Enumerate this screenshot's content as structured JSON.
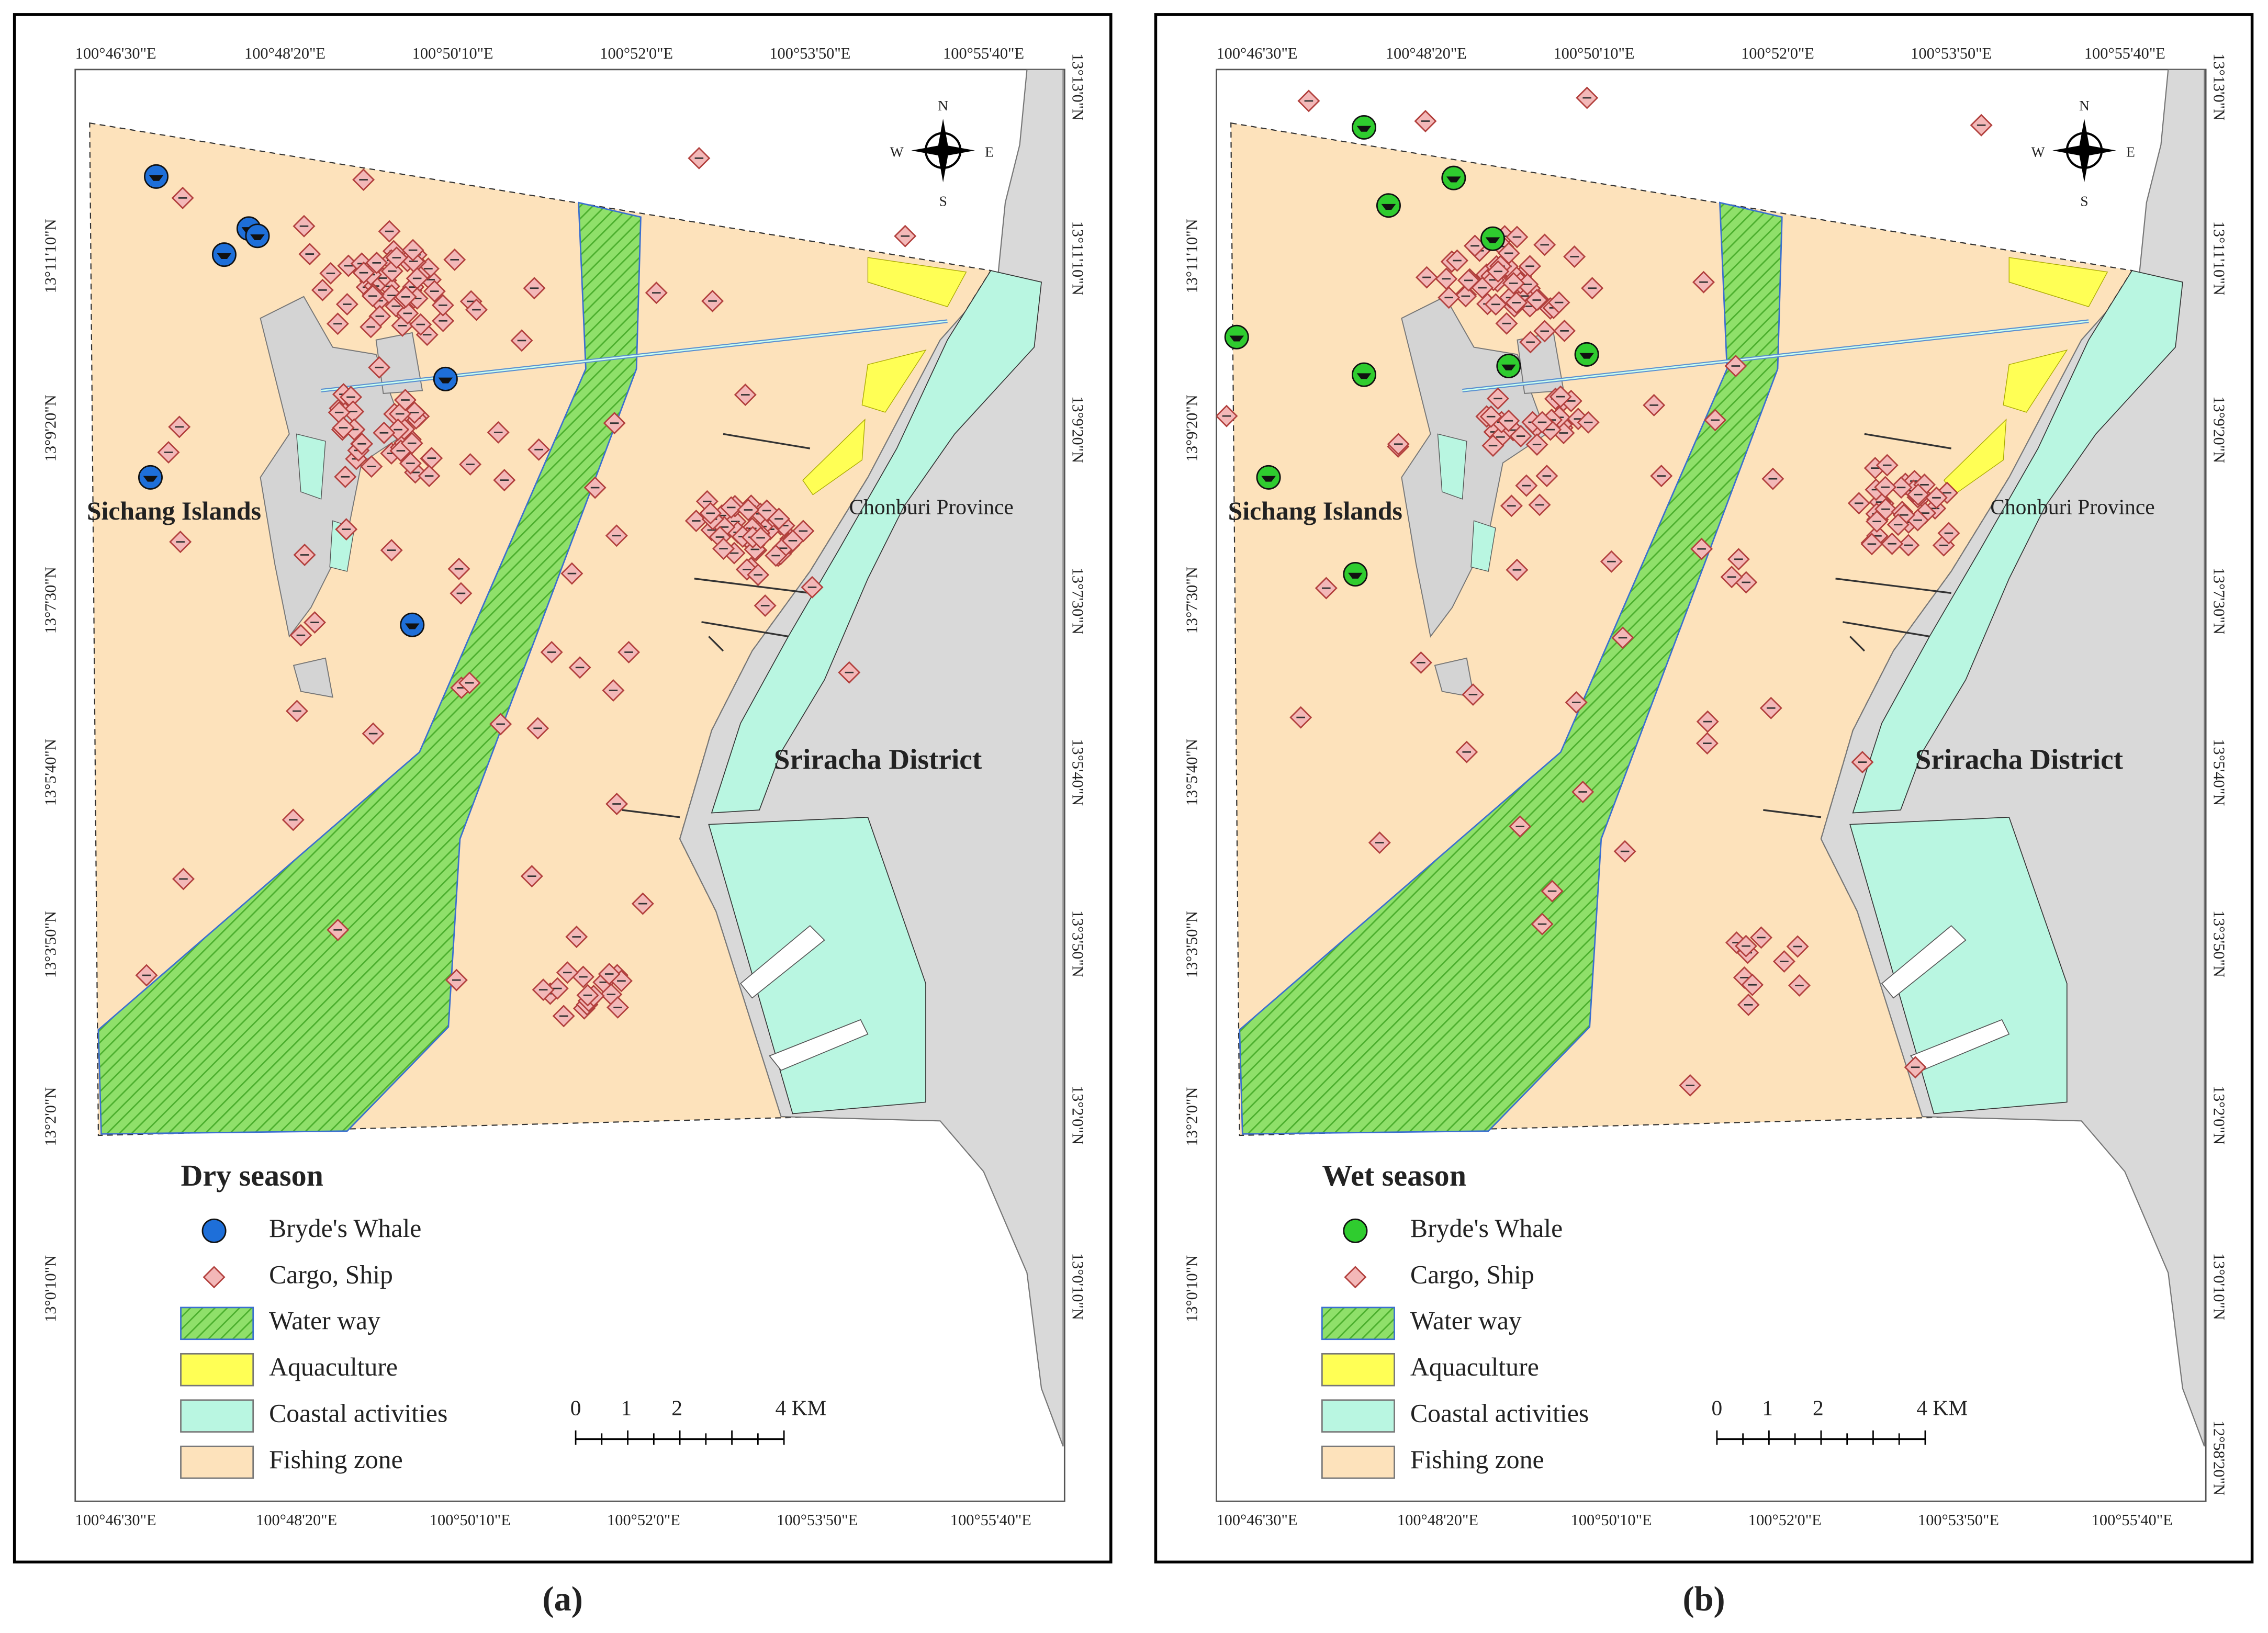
{
  "panels": [
    {
      "season": "Dry season",
      "legend": [
        {
          "label": "Bryde's Whale",
          "color": "#1e6fd9"
        },
        {
          "label": "Cargo, Ship",
          "color": "#f3b8b8"
        },
        {
          "label": "Water way",
          "color": "#7fd65e"
        },
        {
          "label": "Aquaculture",
          "color": "#ffff55"
        },
        {
          "label": "Coastal activities",
          "color": "#b9f6e1"
        },
        {
          "label": "Fishing zone",
          "color": "#fde2bb"
        }
      ],
      "places": [
        "Sichang Islands",
        "Chonburi Province",
        "Sriracha District"
      ],
      "compass": [
        "N",
        "E",
        "S",
        "W"
      ],
      "scale": [
        "0",
        "1",
        "2",
        "4 KM"
      ],
      "top_labels": [
        "100°46'30\"E",
        "100°48'20\"E",
        "100°50'10\"E",
        "100°52'0\"E",
        "100°53'50\"E",
        "100°55'40\"E"
      ],
      "bottom_labels": [
        "100°46'30\"E",
        "100°48'20\"E",
        "100°50'10\"E",
        "100°52'0\"E",
        "100°53'50\"E",
        "100°55'40\"E"
      ],
      "left_labels": [
        "13°11'10\"N",
        "13°9'20\"N",
        "13°7'30\"N",
        "13°5'40\"N",
        "13°3'50\"N",
        "13°2'0\"N",
        "13°0'10\"N"
      ],
      "right_labels": [
        "13°13'0\"N",
        "13°11'10\"N",
        "13°9'20\"N",
        "13°7'30\"N",
        "13°5'40\"N",
        "13°3'50\"N",
        "13°2'0\"N",
        "13°0'10\"N"
      ],
      "caption": "(a)"
    },
    {
      "season": "Wet season",
      "legend": [
        {
          "label": "Bryde's Whale",
          "color": "#2fcc2f"
        },
        {
          "label": "Cargo, Ship",
          "color": "#f3b8b8"
        },
        {
          "label": "Water way",
          "color": "#7fd65e"
        },
        {
          "label": "Aquaculture",
          "color": "#ffff55"
        },
        {
          "label": "Coastal activities",
          "color": "#b9f6e1"
        },
        {
          "label": "Fishing zone",
          "color": "#fde2bb"
        }
      ],
      "places": [
        "Sichang Islands",
        "Chonburi Province",
        "Sriracha District"
      ],
      "compass": [
        "N",
        "E",
        "S",
        "W"
      ],
      "scale": [
        "0",
        "1",
        "2",
        "4 KM"
      ],
      "top_labels": [
        "100°46'30\"E",
        "100°48'20\"E",
        "100°50'10\"E",
        "100°52'0\"E",
        "100°53'50\"E",
        "100°55'40\"E"
      ],
      "bottom_labels": [
        "100°46'30\"E",
        "100°48'20\"E",
        "100°50'10\"E",
        "100°52'0\"E",
        "100°53'50\"E",
        "100°55'40\"E"
      ],
      "left_labels": [
        "13°11'10\"N",
        "13°9'20\"N",
        "13°7'30\"N",
        "13°5'40\"N",
        "13°3'50\"N",
        "13°2'0\"N",
        "13°0'10\"N"
      ],
      "right_labels": [
        "13°13'0\"N",
        "13°11'10\"N",
        "13°9'20\"N",
        "13°7'30\"N",
        "13°5'40\"N",
        "13°3'50\"N",
        "13°2'0\"N",
        "13°0'10\"N",
        "12°58'20\"N"
      ],
      "caption": "(b)"
    }
  ]
}
